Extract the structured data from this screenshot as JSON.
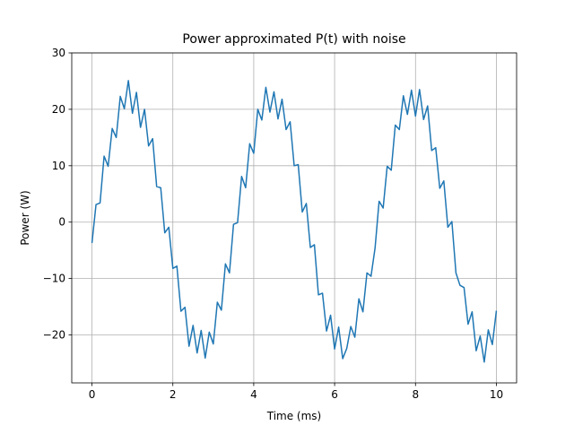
{
  "chart_data": {
    "type": "line",
    "title": "Power approximated P(t) with noise",
    "xlabel": "Time (ms)",
    "ylabel": "Power (W)",
    "grid": true,
    "xlim": [
      -0.5,
      10.5
    ],
    "ylim": [
      -28.5,
      30
    ],
    "xticks": [
      0,
      2,
      4,
      6,
      8,
      10
    ],
    "yticks": [
      {
        "value": -20,
        "label": "−20"
      },
      {
        "value": -10,
        "label": "−10"
      },
      0,
      10,
      20,
      30
    ],
    "x": [
      0,
      0.1,
      0.2,
      0.3,
      0.4,
      0.5,
      0.6,
      0.7,
      0.8,
      0.9,
      1,
      1.1,
      1.2,
      1.3,
      1.4,
      1.5,
      1.6,
      1.7,
      1.8,
      1.9,
      2,
      2.1,
      2.2,
      2.3,
      2.4,
      2.5,
      2.6,
      2.7,
      2.8,
      2.9,
      3,
      3.1,
      3.2,
      3.3,
      3.4,
      3.5,
      3.6,
      3.7,
      3.8,
      3.9,
      4,
      4.1,
      4.2,
      4.3,
      4.4,
      4.5,
      4.6,
      4.7,
      4.8,
      4.9,
      5,
      5.1,
      5.2,
      5.3,
      5.4,
      5.5,
      5.6,
      5.7,
      5.8,
      5.9,
      6,
      6.1,
      6.2,
      6.3,
      6.4,
      6.5,
      6.6,
      6.7,
      6.8,
      6.9,
      7,
      7.1,
      7.2,
      7.3,
      7.4,
      7.5,
      7.6,
      7.7,
      7.8,
      7.9,
      8,
      8.1,
      8.2,
      8.3,
      8.4,
      8.5,
      8.6,
      8.7,
      8.8,
      8.9,
      9,
      9.1,
      9.2,
      9.3,
      9.4,
      9.5,
      9.6,
      9.7,
      9.8,
      9.9,
      10
    ],
    "series": [
      {
        "color": "#1f77b4",
        "values": [
          -3.7,
          3.1,
          3.4,
          11.7,
          9.9,
          16.6,
          15.0,
          22.3,
          20.1,
          25.1,
          19.3,
          23.0,
          16.8,
          20.0,
          13.5,
          14.8,
          6.3,
          6.1,
          -1.9,
          -0.9,
          -8.2,
          -7.8,
          -15.8,
          -15.1,
          -22.0,
          -18.3,
          -23.2,
          -19.2,
          -24.1,
          -19.5,
          -21.6,
          -14.2,
          -15.6,
          -7.4,
          -9.0,
          -0.4,
          -0.1,
          8.1,
          6.1,
          13.9,
          12.2,
          20.0,
          18.1,
          23.9,
          19.5,
          23.1,
          18.3,
          21.8,
          16.4,
          17.8,
          10.0,
          10.2,
          1.8,
          3.3,
          -4.5,
          -4.0,
          -12.9,
          -12.6,
          -19.3,
          -16.5,
          -22.5,
          -18.6,
          -24.2,
          -22.4,
          -18.5,
          -20.4,
          -13.6,
          -15.9,
          -9.0,
          -9.6,
          -4.6,
          3.7,
          2.5,
          9.9,
          9.2,
          17.2,
          16.4,
          22.4,
          19.1,
          23.4,
          18.8,
          23.5,
          18.2,
          20.6,
          12.7,
          13.2,
          6.0,
          7.3,
          -0.9,
          0.1,
          -9.0,
          -11.2,
          -11.6,
          -18.1,
          -15.9,
          -22.8,
          -20.2,
          -24.8,
          -19.1,
          -21.7,
          -15.7
        ]
      }
    ]
  }
}
